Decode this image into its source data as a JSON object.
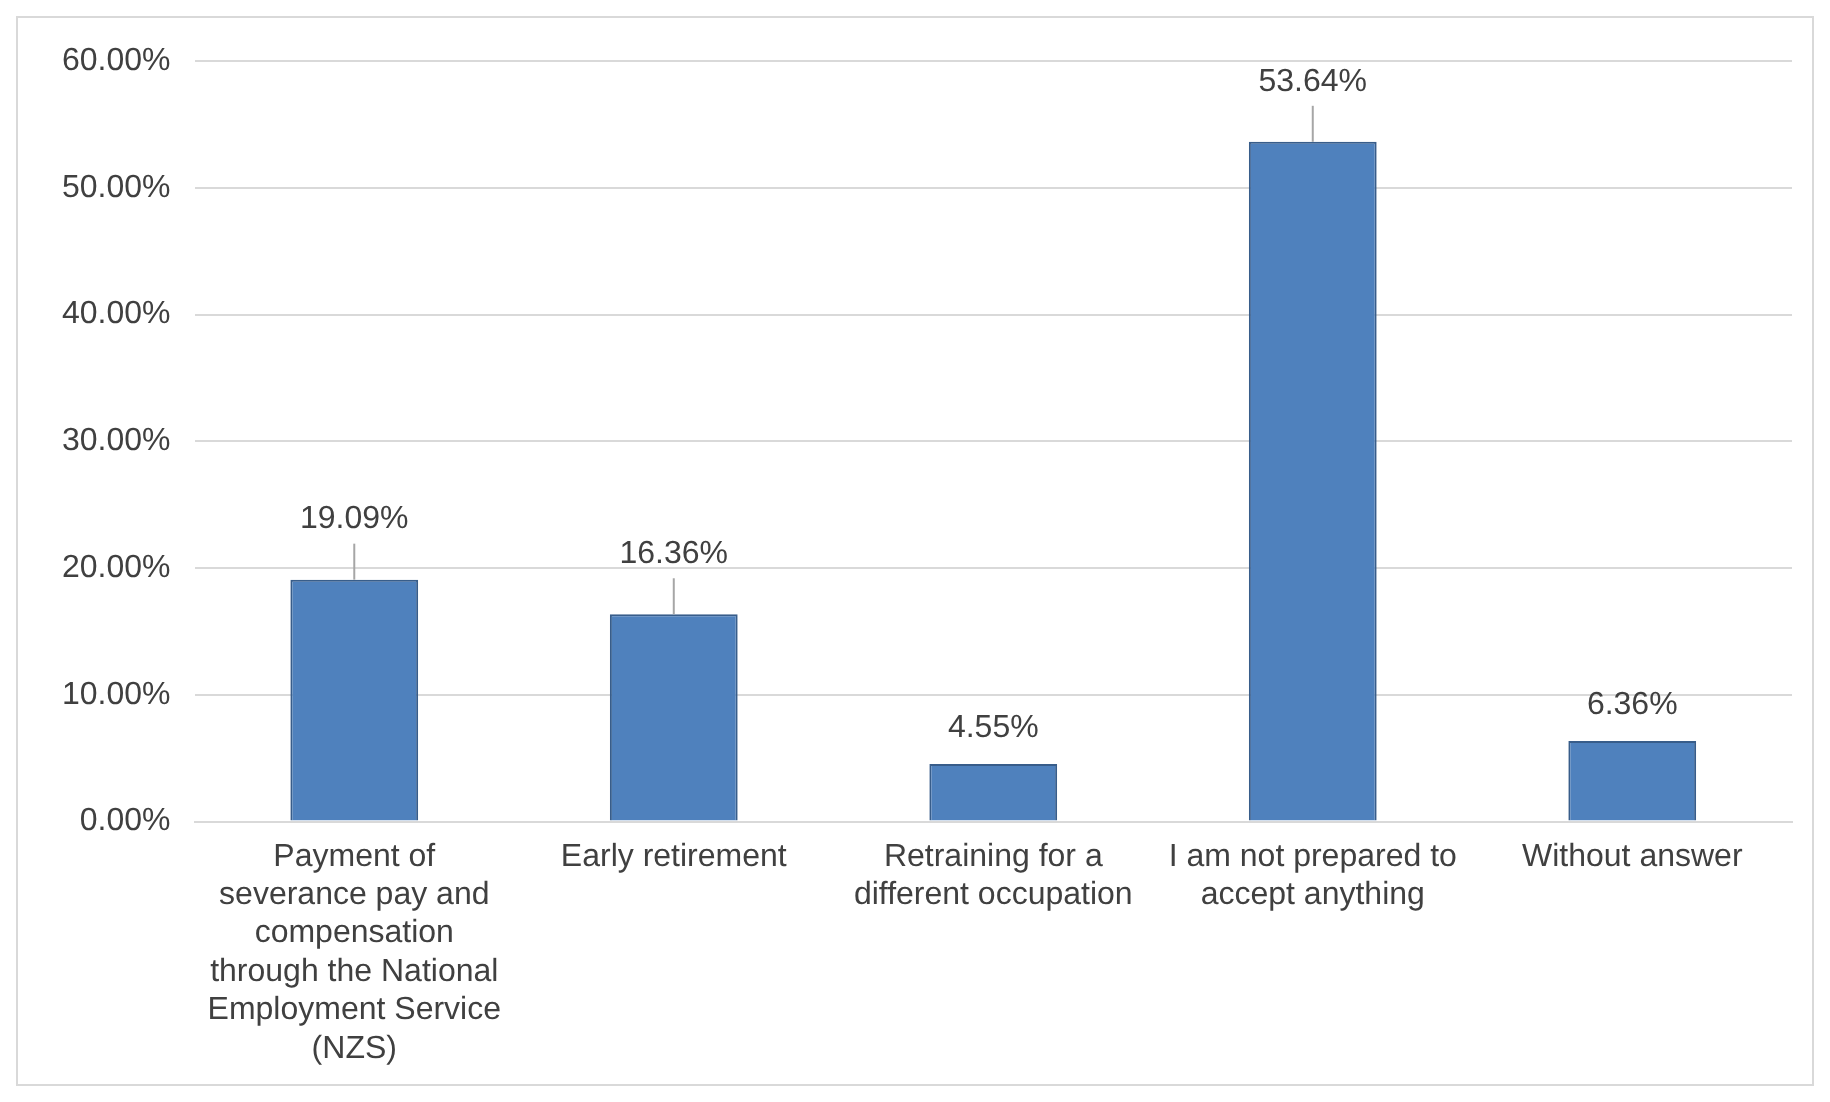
{
  "chart_data": {
    "type": "bar",
    "categories": [
      "Payment of severance pay and compensation through the National Employment Service (NZS)",
      "Early retirement",
      "Retraining for a different occupation",
      "I am not prepared to accept anything",
      "Without answer"
    ],
    "values": [
      19.09,
      16.36,
      4.55,
      53.64,
      6.36
    ],
    "value_labels": [
      "19.09%",
      "16.36%",
      "4.55%",
      "53.64%",
      "6.36%"
    ],
    "color": "#4f81bd",
    "ylim": [
      0,
      60
    ],
    "yticks": [
      {
        "value": 0,
        "label": "0.00%"
      },
      {
        "value": 10,
        "label": "10.00%"
      },
      {
        "value": 20,
        "label": "20.00%"
      },
      {
        "value": 30,
        "label": "30.00%"
      },
      {
        "value": 40,
        "label": "40.00%"
      },
      {
        "value": 50,
        "label": "50.00%"
      },
      {
        "value": 60,
        "label": "60.00%"
      }
    ],
    "grid": "y",
    "legend": false
  }
}
